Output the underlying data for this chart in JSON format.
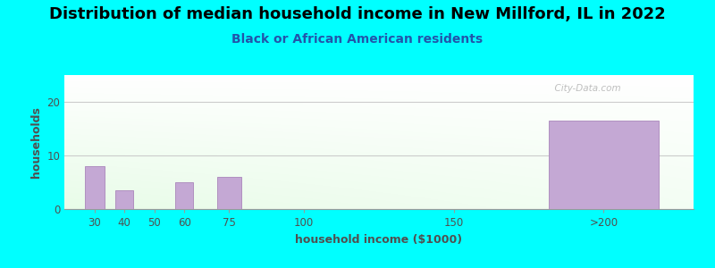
{
  "title": "Distribution of median household income in New Millford, IL in 2022",
  "subtitle": "Black or African American residents",
  "xlabel": "household income ($1000)",
  "ylabel": "households",
  "background_color": "#00FFFF",
  "bar_color": "#c4a8d4",
  "bar_edge_color": "#b090c0",
  "categories": [
    "30",
    "40",
    "50",
    "60",
    "75",
    "100",
    "150",
    ">200"
  ],
  "values": [
    8,
    3.5,
    0,
    5,
    6,
    0,
    0,
    16.5
  ],
  "ylim": [
    0,
    25
  ],
  "yticks": [
    0,
    10,
    20
  ],
  "title_fontsize": 13,
  "subtitle_fontsize": 10,
  "label_fontsize": 9,
  "tick_fontsize": 8.5,
  "title_color": "#000000",
  "subtitle_color": "#2255aa",
  "label_color": "#505050",
  "tick_color": "#505050",
  "watermark_text": "  City-Data.com",
  "plot_bg_colors": [
    "#ffffff",
    "#d8eed8"
  ],
  "grid_color": "#cccccc",
  "xtick_labels": [
    "30",
    "40",
    "50",
    "60",
    "75",
    "100",
    "150",
    ">200"
  ],
  "xtick_positions": [
    30,
    40,
    50,
    60,
    75,
    100,
    150,
    200
  ],
  "bar_positions": [
    30,
    40,
    50,
    60,
    75,
    100,
    150,
    200
  ],
  "bar_widths": [
    8,
    7,
    7,
    7,
    10,
    15,
    15,
    45
  ],
  "xlim": [
    20,
    230
  ]
}
